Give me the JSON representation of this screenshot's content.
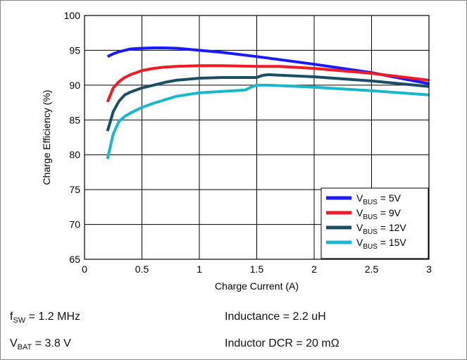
{
  "chart_data": {
    "type": "line",
    "xlabel": "Charge Current (A)",
    "ylabel": "Charge Efficiency (%)",
    "xlim": [
      0,
      3
    ],
    "ylim": [
      65,
      100
    ],
    "xticks": [
      "0",
      "0.5",
      "1",
      "1.5",
      "2",
      "2.5",
      "3"
    ],
    "yticks": [
      "65",
      "70",
      "75",
      "80",
      "85",
      "90",
      "95",
      "100"
    ],
    "grid": true,
    "legend_position": "bottom-right",
    "series": [
      {
        "name": "V_BUS = 5V",
        "legend": {
          "prefix": "V",
          "sub": "BUS",
          "suffix": " = 5V"
        },
        "color": "#1a1aff",
        "x": [
          0.2,
          0.25,
          0.3,
          0.35,
          0.4,
          0.5,
          0.6,
          0.7,
          0.8,
          1.0,
          1.2,
          1.5,
          2.0,
          2.5,
          3.0
        ],
        "y": [
          94.1,
          94.5,
          94.8,
          95.0,
          95.2,
          95.3,
          95.35,
          95.35,
          95.3,
          95.0,
          94.7,
          94.1,
          93.0,
          91.8,
          90.2
        ]
      },
      {
        "name": "V_BUS = 9V",
        "legend": {
          "prefix": "V",
          "sub": "BUS",
          "suffix": " = 9V"
        },
        "color": "#ee1c25",
        "x": [
          0.2,
          0.25,
          0.3,
          0.35,
          0.4,
          0.5,
          0.6,
          0.7,
          0.8,
          1.0,
          1.2,
          1.5,
          1.7,
          2.0,
          2.5,
          3.0
        ],
        "y": [
          87.6,
          89.6,
          90.5,
          91.1,
          91.5,
          92.1,
          92.4,
          92.6,
          92.7,
          92.8,
          92.8,
          92.7,
          92.7,
          92.4,
          91.7,
          90.7
        ]
      },
      {
        "name": "V_BUS = 12V",
        "legend": {
          "prefix": "V",
          "sub": "BUS",
          "suffix": " = 12V"
        },
        "color": "#1c4e63",
        "x": [
          0.2,
          0.25,
          0.3,
          0.35,
          0.4,
          0.5,
          0.6,
          0.7,
          0.8,
          1.0,
          1.2,
          1.5,
          1.55,
          1.6,
          2.0,
          2.5,
          3.0
        ],
        "y": [
          83.4,
          86.2,
          87.7,
          88.6,
          89.0,
          89.6,
          90.0,
          90.4,
          90.7,
          91.0,
          91.1,
          91.1,
          91.4,
          91.5,
          91.2,
          90.6,
          89.8
        ]
      },
      {
        "name": "V_BUS = 15V",
        "legend": {
          "prefix": "V",
          "sub": "BUS",
          "suffix": " = 15V"
        },
        "color": "#1ab7cc",
        "x": [
          0.2,
          0.25,
          0.3,
          0.35,
          0.4,
          0.5,
          0.6,
          0.7,
          0.8,
          1.0,
          1.2,
          1.4,
          1.45,
          1.5,
          1.6,
          2.0,
          2.5,
          3.0
        ],
        "y": [
          79.4,
          83.0,
          84.8,
          85.5,
          86.0,
          86.8,
          87.4,
          87.9,
          88.4,
          88.9,
          89.1,
          89.3,
          89.7,
          90.0,
          90.0,
          89.7,
          89.2,
          88.6
        ]
      }
    ]
  },
  "notes": {
    "fsw": {
      "prefix": "f",
      "sub": "SW",
      "suffix": " = 1.2 MHz"
    },
    "vbat": {
      "prefix": "V",
      "sub": "BAT",
      "suffix": " = 3.8 V"
    },
    "inductance": "Inductance = 2.2 uH",
    "dcr": "Inductor DCR = 20 mΩ"
  }
}
